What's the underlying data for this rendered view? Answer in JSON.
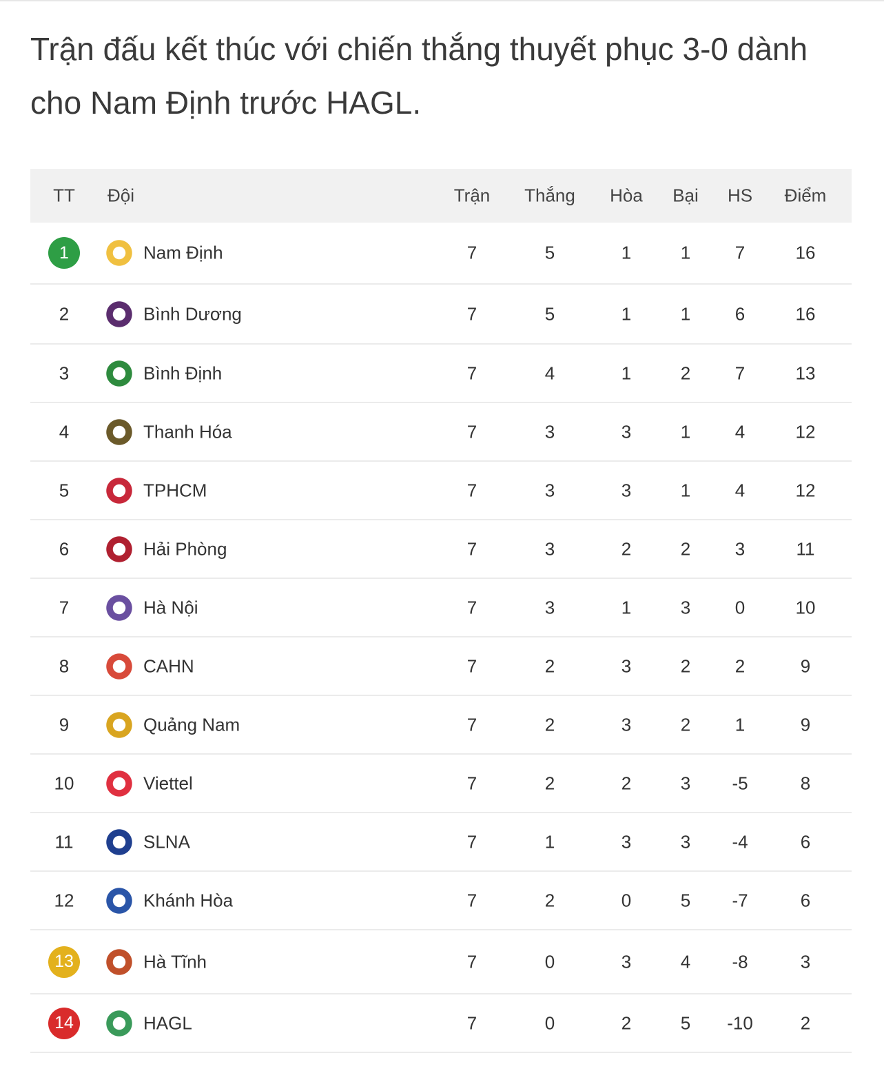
{
  "article": {
    "caption": "Trận đấu kết thúc với chiến thắng thuyết phục 3-0 dành cho Nam Định trước HAGL."
  },
  "table": {
    "headers": {
      "rank": "TT",
      "team": "Đội",
      "played": "Trận",
      "won": "Thắng",
      "drawn": "Hòa",
      "lost": "Bại",
      "gd": "HS",
      "points": "Điểm"
    },
    "badge_colors": {
      "top": "#2e9e45",
      "relegation_playoff": "#e3b11d",
      "relegation": "#d92b2b"
    },
    "rows": [
      {
        "rank": "1",
        "team": "Nam Định",
        "played": "7",
        "won": "5",
        "drawn": "1",
        "lost": "1",
        "gd": "7",
        "points": "16",
        "badge": "top",
        "logo_color": "#f0c040",
        "logo_icon": "nam-dinh-crest"
      },
      {
        "rank": "2",
        "team": "Bình Dương",
        "played": "7",
        "won": "5",
        "drawn": "1",
        "lost": "1",
        "gd": "6",
        "points": "16",
        "logo_color": "#5b2d6e",
        "logo_icon": "binh-duong-crest"
      },
      {
        "rank": "3",
        "team": "Bình Định",
        "played": "7",
        "won": "4",
        "drawn": "1",
        "lost": "2",
        "gd": "7",
        "points": "13",
        "logo_color": "#2e8b3e",
        "logo_icon": "binh-dinh-crest"
      },
      {
        "rank": "4",
        "team": "Thanh Hóa",
        "played": "7",
        "won": "3",
        "drawn": "3",
        "lost": "1",
        "gd": "4",
        "points": "12",
        "logo_color": "#6b5a2a",
        "logo_icon": "thanh-hoa-crest"
      },
      {
        "rank": "5",
        "team": "TPHCM",
        "played": "7",
        "won": "3",
        "drawn": "3",
        "lost": "1",
        "gd": "4",
        "points": "12",
        "logo_color": "#c8283a",
        "logo_icon": "tphcm-crest"
      },
      {
        "rank": "6",
        "team": "Hải Phòng",
        "played": "7",
        "won": "3",
        "drawn": "2",
        "lost": "2",
        "gd": "3",
        "points": "11",
        "logo_color": "#b02030",
        "logo_icon": "hai-phong-crest"
      },
      {
        "rank": "7",
        "team": "Hà Nội",
        "played": "7",
        "won": "3",
        "drawn": "1",
        "lost": "3",
        "gd": "0",
        "points": "10",
        "logo_color": "#6a4fa0",
        "logo_icon": "ha-noi-crest"
      },
      {
        "rank": "8",
        "team": "CAHN",
        "played": "7",
        "won": "2",
        "drawn": "3",
        "lost": "2",
        "gd": "2",
        "points": "9",
        "logo_color": "#d84a3a",
        "logo_icon": "cahn-crest"
      },
      {
        "rank": "9",
        "team": "Quảng Nam",
        "played": "7",
        "won": "2",
        "drawn": "3",
        "lost": "2",
        "gd": "1",
        "points": "9",
        "logo_color": "#d9a520",
        "logo_icon": "quang-nam-crest"
      },
      {
        "rank": "10",
        "team": "Viettel",
        "played": "7",
        "won": "2",
        "drawn": "2",
        "lost": "3",
        "gd": "-5",
        "points": "8",
        "logo_color": "#e03040",
        "logo_icon": "viettel-crest"
      },
      {
        "rank": "11",
        "team": "SLNA",
        "played": "7",
        "won": "1",
        "drawn": "3",
        "lost": "3",
        "gd": "-4",
        "points": "6",
        "logo_color": "#1f3f8f",
        "logo_icon": "slna-crest"
      },
      {
        "rank": "12",
        "team": "Khánh Hòa",
        "played": "7",
        "won": "2",
        "drawn": "0",
        "lost": "5",
        "gd": "-7",
        "points": "6",
        "logo_color": "#2a55a8",
        "logo_icon": "khanh-hoa-crest"
      },
      {
        "rank": "13",
        "team": "Hà Tĩnh",
        "played": "7",
        "won": "0",
        "drawn": "3",
        "lost": "4",
        "gd": "-8",
        "points": "3",
        "badge": "relegation_playoff",
        "logo_color": "#c0502a",
        "logo_icon": "ha-tinh-crest"
      },
      {
        "rank": "14",
        "team": "HAGL",
        "played": "7",
        "won": "0",
        "drawn": "2",
        "lost": "5",
        "gd": "-10",
        "points": "2",
        "badge": "relegation",
        "logo_color": "#3a9a5a",
        "logo_icon": "hagl-crest"
      }
    ]
  }
}
